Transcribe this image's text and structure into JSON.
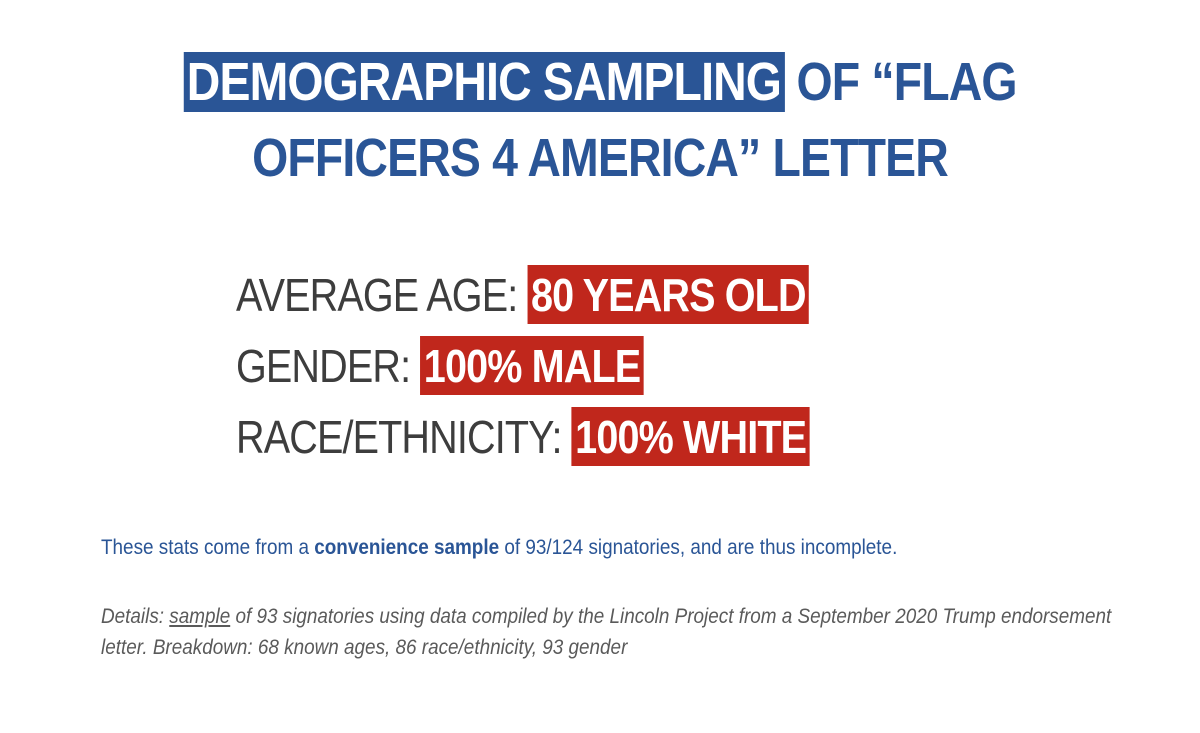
{
  "title": {
    "highlight": "DEMOGRAPHIC SAMPLING",
    "rest_line1": " OF “FLAG",
    "line2": "OFFICERS 4 AMERICA” LETTER"
  },
  "stats": [
    {
      "label": "AVERAGE AGE: ",
      "value": "80 YEARS OLD"
    },
    {
      "label": "GENDER: ",
      "value": "100% MALE"
    },
    {
      "label": "RACE/ETHNICITY: ",
      "value": "100% WHITE"
    }
  ],
  "note": {
    "before": "These stats come from a ",
    "bold": "convenience sample",
    "after": " of 93/124 signatories, and are thus incomplete."
  },
  "details": {
    "prefix": "Details: ",
    "underlined": "sample",
    "rest": " of 93 signatories using data compiled by the Lincoln Project from a September 2020 Trump endorsement letter. Breakdown: 68 known ages, 86 race/ethnicity, 93 gender"
  },
  "colors": {
    "title_blue": "#2a5596",
    "highlight_red": "#c0271c",
    "label_gray": "#3d3d3d"
  }
}
